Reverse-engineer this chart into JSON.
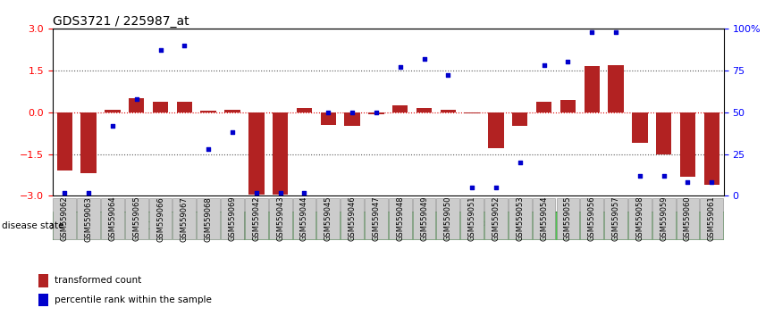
{
  "title": "GDS3721 / 225987_at",
  "samples": [
    "GSM559062",
    "GSM559063",
    "GSM559064",
    "GSM559065",
    "GSM559066",
    "GSM559067",
    "GSM559068",
    "GSM559069",
    "GSM559042",
    "GSM559043",
    "GSM559044",
    "GSM559045",
    "GSM559046",
    "GSM559047",
    "GSM559048",
    "GSM559049",
    "GSM559050",
    "GSM559051",
    "GSM559052",
    "GSM559053",
    "GSM559054",
    "GSM559055",
    "GSM559056",
    "GSM559057",
    "GSM559058",
    "GSM559059",
    "GSM559060",
    "GSM559061"
  ],
  "bar_values": [
    -2.1,
    -2.2,
    0.1,
    0.5,
    0.38,
    0.38,
    0.05,
    0.1,
    -2.95,
    -2.95,
    0.15,
    -0.45,
    -0.5,
    -0.08,
    0.25,
    0.15,
    0.1,
    -0.05,
    -1.3,
    -0.5,
    0.38,
    0.45,
    1.65,
    1.7,
    -1.1,
    -1.5,
    -2.3,
    -2.6
  ],
  "percentile_values": [
    2,
    2,
    42,
    58,
    87,
    90,
    28,
    38,
    2,
    2,
    2,
    50,
    50,
    50,
    77,
    82,
    72,
    5,
    5,
    20,
    78,
    80,
    98,
    98,
    12,
    12,
    8,
    8
  ],
  "pCR_count": 8,
  "pPR_count": 20,
  "yticks_left": [
    -3,
    -1.5,
    0,
    1.5,
    3
  ],
  "yticks_right": [
    0,
    25,
    50,
    75,
    100
  ],
  "bar_color": "#b22222",
  "dot_color": "#0000cc",
  "pCR_color": "#b5e8b5",
  "pPR_color": "#4dc94d",
  "border_color": "#228b22",
  "legend_bar_label": "transformed count",
  "legend_dot_label": "percentile rank within the sample",
  "disease_state_label": "disease state",
  "hline_color": "#dd0000",
  "dotted_line_color": "#555555",
  "title_fontsize": 10,
  "tick_label_fontsize": 6,
  "left_color": "red",
  "right_color": "blue"
}
